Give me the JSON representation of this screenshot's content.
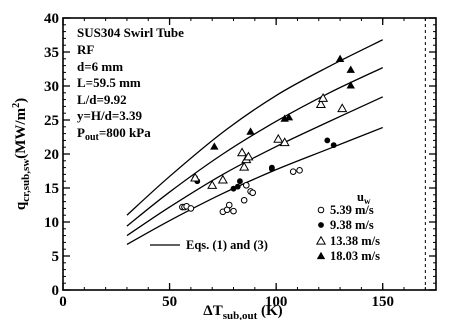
{
  "chart_data": {
    "type": "scatter",
    "xlabel": "ΔT",
    "xlabel_sub": "sub,out",
    "xlabel_unit": " (K)",
    "ylabel": "q",
    "ylabel_sub": "cr,sub,sw",
    "ylabel_unit": "(MW/m",
    "ylabel_sup": "2",
    "ylabel_close": ")",
    "xlim": [
      0,
      175
    ],
    "ylim": [
      0,
      40
    ],
    "xticks": [
      0,
      50,
      100,
      150
    ],
    "yticks": [
      0,
      5,
      10,
      15,
      20,
      25,
      30,
      35,
      40
    ],
    "x_minor_step": 10,
    "y_minor_step": 1,
    "reference_line_x": 170,
    "annotations": [
      {
        "text": "SUS304 Swirl Tube"
      },
      {
        "text": "RF"
      },
      {
        "text": "d=6 mm"
      },
      {
        "text": "L=59.5 mm"
      },
      {
        "text": "L/d=9.92"
      },
      {
        "text": "y=H/d=3.39"
      },
      {
        "text": "P",
        "sub": "out",
        "rest": "=800 kPa"
      }
    ],
    "legend": {
      "title": "u",
      "title_sub": "w",
      "location": "lower-right",
      "line_label": "Eqs. (1) and (3)"
    },
    "series": [
      {
        "name": "5.39  m/s",
        "marker": "open-circle",
        "points": [
          [
            56,
            12.2
          ],
          [
            57,
            12.2
          ],
          [
            58,
            12.3
          ],
          [
            60,
            12.0
          ],
          [
            75,
            11.5
          ],
          [
            77,
            11.8
          ],
          [
            78,
            12.5
          ],
          [
            80,
            11.6
          ],
          [
            85,
            13.2
          ],
          [
            86,
            15.4
          ],
          [
            88,
            14.5
          ],
          [
            89,
            14.3
          ],
          [
            108,
            17.4
          ],
          [
            111,
            17.6
          ]
        ]
      },
      {
        "name": "9.38  m/s",
        "marker": "filled-circle",
        "points": [
          [
            62,
            16.5
          ],
          [
            63,
            16.0
          ],
          [
            80,
            14.9
          ],
          [
            82,
            15.2
          ],
          [
            83,
            16.0
          ],
          [
            98,
            17.8
          ],
          [
            98,
            18.0
          ],
          [
            124,
            22.0
          ],
          [
            127,
            21.3
          ]
        ]
      },
      {
        "name": "13.38  m/s",
        "marker": "open-triangle",
        "points": [
          [
            62,
            16.5
          ],
          [
            70,
            15.4
          ],
          [
            75,
            16.2
          ],
          [
            84,
            20.2
          ],
          [
            85,
            18.1
          ],
          [
            86,
            19.2
          ],
          [
            87,
            19.6
          ],
          [
            101,
            22.2
          ],
          [
            104,
            21.7
          ],
          [
            121,
            27.3
          ],
          [
            122,
            28.2
          ],
          [
            131,
            26.7
          ]
        ]
      },
      {
        "name": "18.03  m/s",
        "marker": "filled-triangle",
        "points": [
          [
            71,
            21.1
          ],
          [
            88,
            23.3
          ],
          [
            104,
            25.2
          ],
          [
            106,
            25.4
          ],
          [
            130,
            34.0
          ],
          [
            135,
            32.4
          ],
          [
            135,
            30.1
          ]
        ]
      }
    ],
    "curves": [
      {
        "name": "Eqs. (1) and (3)",
        "points": [
          [
            30,
            11.0
          ],
          [
            50,
            16.7
          ],
          [
            75,
            23.2
          ],
          [
            100,
            28.6
          ],
          [
            125,
            32.9
          ],
          [
            150,
            36.8
          ]
        ]
      },
      {
        "name": "Eqs. (1) and (3)",
        "points": [
          [
            30,
            9.4
          ],
          [
            50,
            14.4
          ],
          [
            75,
            20.0
          ],
          [
            100,
            24.8
          ],
          [
            125,
            29.0
          ],
          [
            150,
            32.7
          ]
        ]
      },
      {
        "name": "Eqs. (1) and (3)",
        "points": [
          [
            30,
            8.0
          ],
          [
            50,
            12.2
          ],
          [
            75,
            17.0
          ],
          [
            100,
            21.1
          ],
          [
            125,
            24.8
          ],
          [
            150,
            28.4
          ]
        ]
      },
      {
        "name": "Eqs. (1) and (3)",
        "points": [
          [
            30,
            6.7
          ],
          [
            50,
            10.2
          ],
          [
            75,
            14.2
          ],
          [
            100,
            17.7
          ],
          [
            125,
            20.8
          ],
          [
            150,
            23.9
          ]
        ]
      }
    ]
  }
}
